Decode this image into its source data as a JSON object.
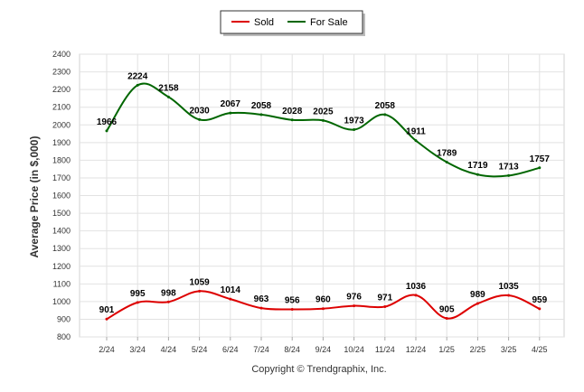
{
  "chart_data": {
    "type": "line",
    "ylabel": "Average Price (in $,000)",
    "xlabel": "",
    "ylim": [
      800,
      2400
    ],
    "yticks": [
      800,
      900,
      1000,
      1100,
      1200,
      1300,
      1400,
      1500,
      1600,
      1700,
      1800,
      1900,
      2000,
      2100,
      2200,
      2300,
      2400
    ],
    "categories": [
      "2/24",
      "3/24",
      "4/24",
      "5/24",
      "6/24",
      "7/24",
      "8/24",
      "9/24",
      "10/24",
      "11/24",
      "12/24",
      "1/25",
      "2/25",
      "3/25",
      "4/25"
    ],
    "grid": true,
    "legend_position": "top-center",
    "series": [
      {
        "name": "Sold",
        "color": "#dd0000",
        "values": [
          901,
          995,
          998,
          1059,
          1014,
          963,
          956,
          960,
          976,
          971,
          1036,
          905,
          989,
          1035,
          959
        ]
      },
      {
        "name": "For Sale",
        "color": "#006600",
        "values": [
          1966,
          2224,
          2158,
          2030,
          2067,
          2058,
          2028,
          2025,
          1973,
          2058,
          1911,
          1789,
          1719,
          1713,
          1757
        ]
      }
    ]
  },
  "footer": {
    "copyright": "Copyright © Trendgraphix, Inc."
  }
}
